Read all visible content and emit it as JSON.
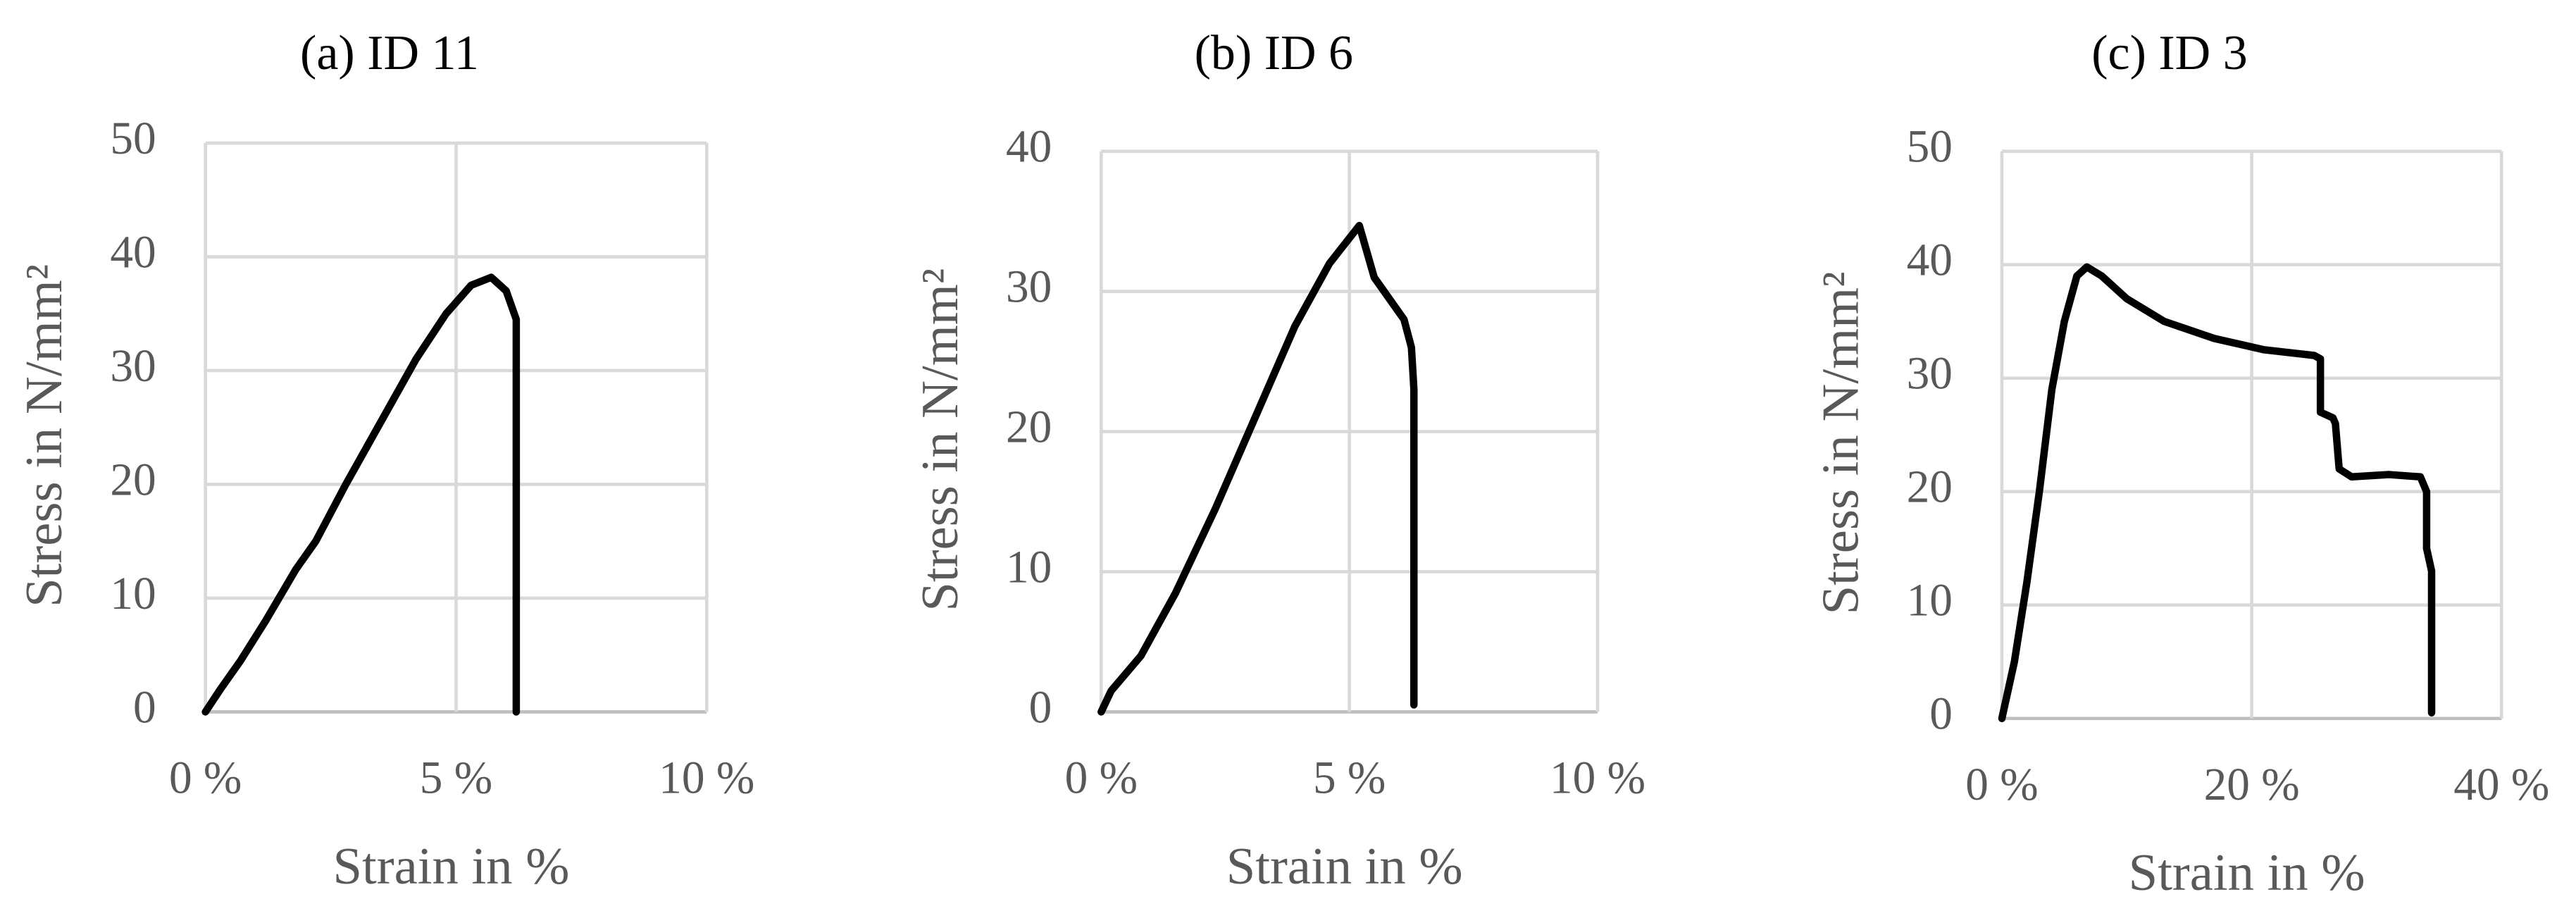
{
  "chart_data": [
    {
      "type": "line",
      "title": "(a) ID 11",
      "x_label": "Strain in %",
      "y_label": "Stress in N/mm²",
      "x": [
        0,
        0.3,
        0.7,
        1.2,
        1.8,
        2.2,
        2.8,
        3.5,
        4.2,
        4.8,
        5.3,
        5.7,
        6.0,
        6.2,
        6.2,
        6.2
      ],
      "values": [
        0,
        2,
        4.5,
        8,
        12.5,
        15,
        20,
        25.5,
        31,
        35,
        37.5,
        38.2,
        37,
        34.5,
        22,
        0
      ],
      "color": "#000000",
      "xlim": [
        0,
        10
      ],
      "ylim": [
        0,
        50
      ],
      "xticks": [
        {
          "value": 0,
          "label": "0 %"
        },
        {
          "value": 5,
          "label": "5 %"
        },
        {
          "value": 10,
          "label": "10 %"
        }
      ],
      "yticks": [
        0,
        10,
        20,
        30,
        40,
        50
      ],
      "grid": true
    },
    {
      "type": "line",
      "title": "(b) ID 6",
      "x_label": "Strain in %",
      "y_label": "Stress in N/mm²",
      "x": [
        0,
        0.2,
        0.8,
        1.5,
        2.3,
        3.1,
        3.9,
        4.6,
        5.2,
        5.5,
        5.8,
        6.1,
        6.25,
        6.3,
        6.3
      ],
      "values": [
        0,
        1.5,
        4,
        8.5,
        14.5,
        21,
        27.5,
        32,
        34.7,
        31,
        29.5,
        28,
        26,
        23,
        0.5
      ],
      "color": "#000000",
      "xlim": [
        0,
        10
      ],
      "ylim": [
        0,
        40
      ],
      "xticks": [
        {
          "value": 0,
          "label": "0 %"
        },
        {
          "value": 5,
          "label": "5 %"
        },
        {
          "value": 10,
          "label": "10 %"
        }
      ],
      "yticks": [
        0,
        10,
        20,
        30,
        40
      ],
      "grid": true
    },
    {
      "type": "line",
      "title": "(c) ID 3",
      "x_label": "Strain in %",
      "y_label": "Stress in N/mm²",
      "x": [
        0,
        1,
        2,
        3,
        4,
        5,
        6,
        6.8,
        8,
        10,
        13,
        17,
        21,
        25,
        25.5,
        25.5,
        26.5,
        26.7,
        27,
        28,
        31,
        33.5,
        34,
        34,
        34.4,
        34.4
      ],
      "values": [
        0,
        5,
        12,
        20,
        29,
        35,
        39,
        39.8,
        39,
        37,
        35,
        33.5,
        32.5,
        32,
        31.7,
        27,
        26.5,
        26,
        22,
        21.3,
        21.5,
        21.3,
        20,
        15,
        13,
        0.5
      ],
      "color": "#000000",
      "xlim": [
        0,
        40
      ],
      "ylim": [
        0,
        50
      ],
      "xticks": [
        {
          "value": 0,
          "label": "0 %"
        },
        {
          "value": 20,
          "label": "20 %"
        },
        {
          "value": 40,
          "label": "40 %"
        }
      ],
      "yticks": [
        0,
        10,
        20,
        30,
        40,
        50
      ],
      "grid": true
    }
  ]
}
